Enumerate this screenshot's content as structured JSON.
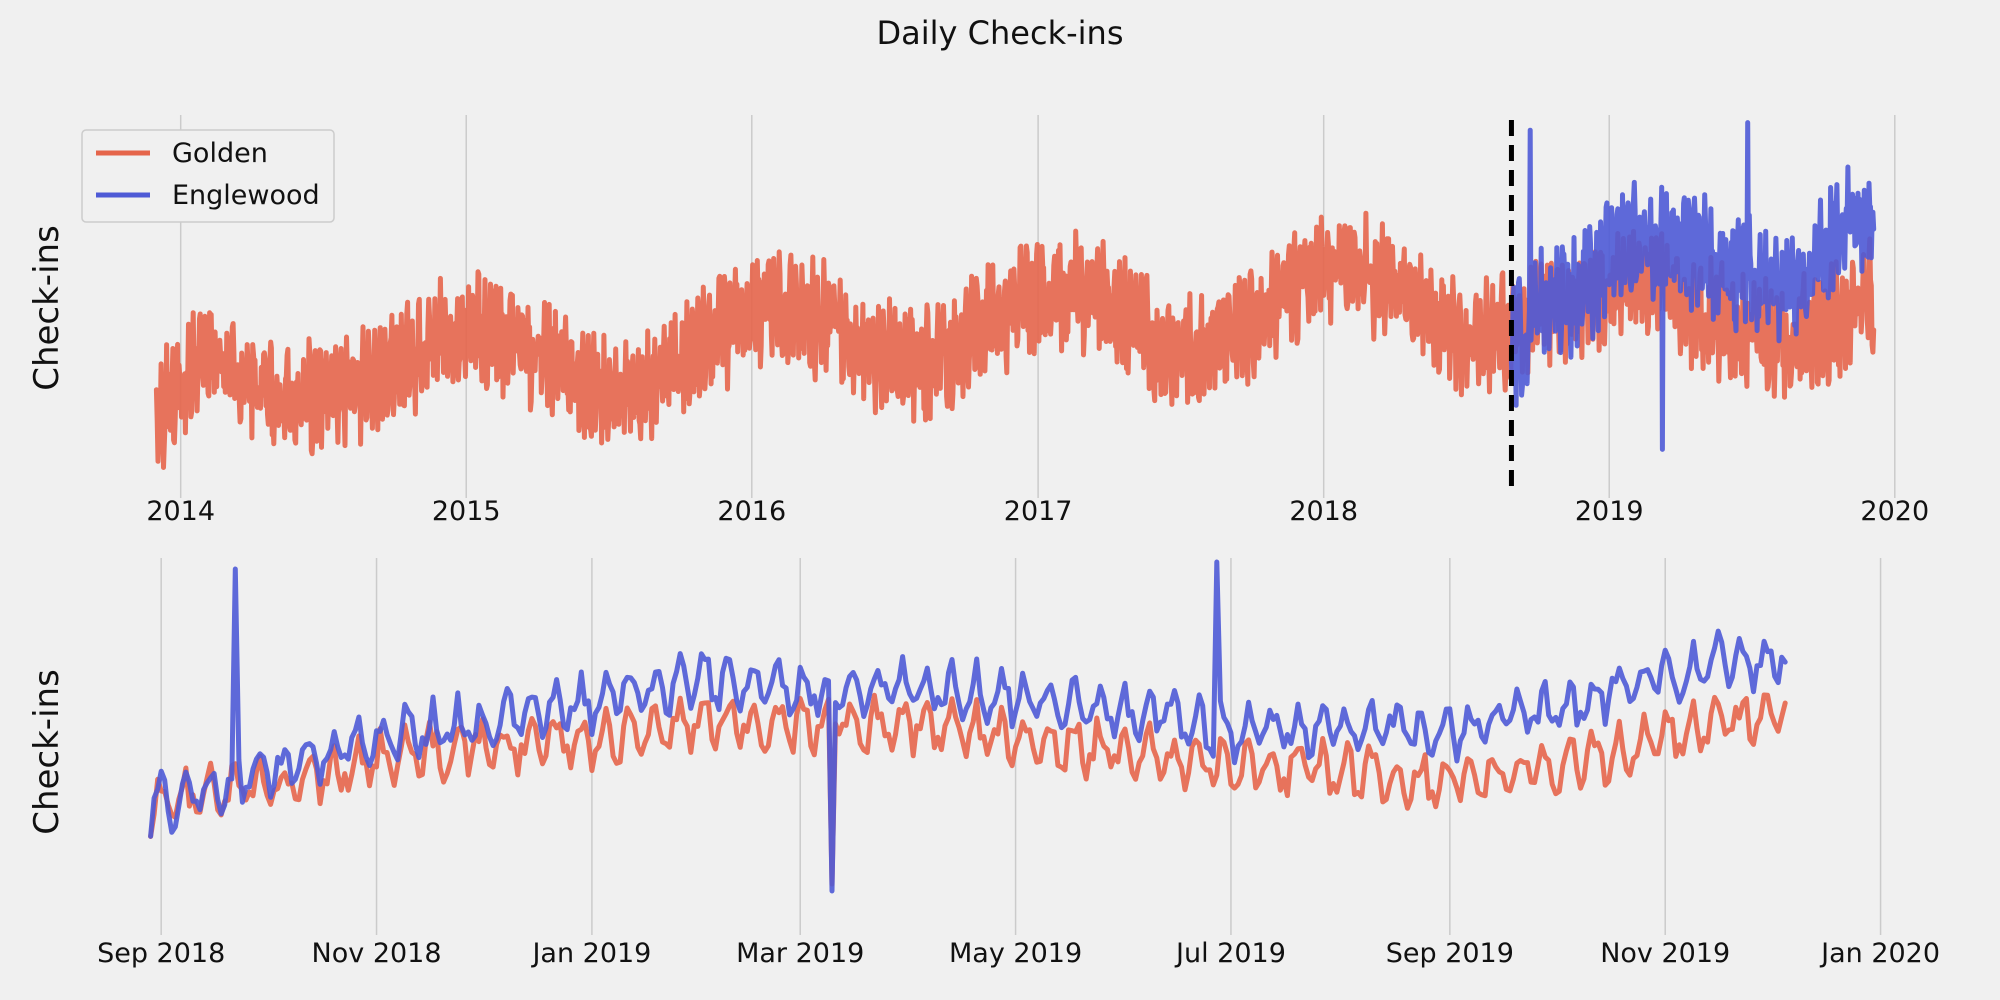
{
  "figure": {
    "title": "Daily Check-ins"
  },
  "colors": {
    "background": "#f0f0f0",
    "grid": "#cbcbcb",
    "golden": "#e5654b",
    "englewood": "#4e5ad6",
    "marker": "#000000"
  },
  "chart_data": [
    {
      "type": "line",
      "panel": "overview",
      "ylabel": "Check-ins",
      "x_tick_labels": [
        "2014",
        "2015",
        "2016",
        "2017",
        "2018",
        "2019",
        "2020"
      ],
      "xlim": [
        "2013-11-10",
        "2020-02-15"
      ],
      "ylim": [
        0,
        100
      ],
      "grid": "vertical",
      "legend": {
        "placement": "upper-left",
        "entries": [
          "Golden",
          "Englewood"
        ]
      },
      "marker_line": {
        "date": "2018-08-29",
        "style": "dashed"
      },
      "series": [
        {
          "name": "Golden",
          "color": "#e5654b",
          "start": "2013-12-01",
          "end": "2019-12-05",
          "points": [
            [
              "2013-12-01",
              22
            ],
            [
              "2014-02-01",
              36
            ],
            [
              "2014-04-01",
              30
            ],
            [
              "2014-06-01",
              24
            ],
            [
              "2014-08-01",
              27
            ],
            [
              "2014-10-01",
              35
            ],
            [
              "2014-12-01",
              42
            ],
            [
              "2015-02-01",
              44
            ],
            [
              "2015-04-01",
              38
            ],
            [
              "2015-06-01",
              28
            ],
            [
              "2015-08-01",
              26
            ],
            [
              "2015-10-01",
              34
            ],
            [
              "2015-12-01",
              44
            ],
            [
              "2016-02-01",
              50
            ],
            [
              "2016-04-01",
              46
            ],
            [
              "2016-06-01",
              36
            ],
            [
              "2016-08-01",
              34
            ],
            [
              "2016-10-01",
              40
            ],
            [
              "2016-12-01",
              50
            ],
            [
              "2017-02-01",
              54
            ],
            [
              "2017-04-01",
              50
            ],
            [
              "2017-06-01",
              40
            ],
            [
              "2017-08-01",
              38
            ],
            [
              "2017-10-01",
              46
            ],
            [
              "2017-12-01",
              56
            ],
            [
              "2018-02-01",
              60
            ],
            [
              "2018-04-01",
              56
            ],
            [
              "2018-06-01",
              44
            ],
            [
              "2018-08-01",
              42
            ],
            [
              "2018-10-01",
              48
            ],
            [
              "2018-12-01",
              50
            ],
            [
              "2019-02-01",
              58
            ],
            [
              "2019-04-01",
              52
            ],
            [
              "2019-06-01",
              44
            ],
            [
              "2019-08-01",
              40
            ],
            [
              "2019-10-01",
              44
            ],
            [
              "2019-12-05",
              52
            ]
          ]
        },
        {
          "name": "Englewood",
          "color": "#4e5ad6",
          "start": "2018-08-29",
          "end": "2019-12-05",
          "points": [
            [
              "2018-08-29",
              38
            ],
            [
              "2018-10-01",
              48
            ],
            [
              "2018-12-01",
              55
            ],
            [
              "2019-01-01",
              64
            ],
            [
              "2019-02-01",
              68
            ],
            [
              "2019-03-01",
              64
            ],
            [
              "2019-04-01",
              66
            ],
            [
              "2019-05-01",
              64
            ],
            [
              "2019-06-01",
              58
            ],
            [
              "2019-07-01",
              58
            ],
            [
              "2019-08-01",
              54
            ],
            [
              "2019-09-01",
              56
            ],
            [
              "2019-10-01",
              64
            ],
            [
              "2019-11-01",
              70
            ],
            [
              "2019-12-05",
              72
            ]
          ],
          "spikes": [
            [
              "2018-09-22",
              96
            ],
            [
              "2019-03-10",
              12
            ],
            [
              "2019-06-27",
              98
            ]
          ]
        }
      ]
    },
    {
      "type": "line",
      "panel": "zoom",
      "ylabel": "Check-ins",
      "x_tick_labels": [
        "Sep 2018",
        "Nov 2018",
        "Jan 2019",
        "Mar 2019",
        "May 2019",
        "Jul 2019",
        "Sep 2019",
        "Nov 2019",
        "Jan 2020"
      ],
      "xlim": [
        "2018-08-26",
        "2020-01-15"
      ],
      "ylim": [
        0,
        100
      ],
      "grid": "vertical",
      "series": [
        {
          "name": "Golden",
          "color": "#e5654b",
          "start": "2018-08-29",
          "end": "2019-12-05",
          "points": [
            [
              "2018-08-29",
              28
            ],
            [
              "2018-10-01",
              34
            ],
            [
              "2018-11-01",
              42
            ],
            [
              "2018-12-01",
              46
            ],
            [
              "2019-01-01",
              48
            ],
            [
              "2019-02-01",
              52
            ],
            [
              "2019-03-01",
              52
            ],
            [
              "2019-04-01",
              52
            ],
            [
              "2019-05-01",
              48
            ],
            [
              "2019-06-01",
              44
            ],
            [
              "2019-07-01",
              40
            ],
            [
              "2019-08-01",
              38
            ],
            [
              "2019-09-01",
              36
            ],
            [
              "2019-10-01",
              40
            ],
            [
              "2019-11-01",
              48
            ],
            [
              "2019-12-05",
              56
            ]
          ],
          "spikes": [
            [
              "2019-03-10",
              6
            ]
          ]
        },
        {
          "name": "Englewood",
          "color": "#4e5ad6",
          "start": "2018-08-29",
          "end": "2019-12-05",
          "points": [
            [
              "2018-08-29",
              28
            ],
            [
              "2018-10-01",
              38
            ],
            [
              "2018-11-01",
              48
            ],
            [
              "2018-12-01",
              52
            ],
            [
              "2019-01-01",
              58
            ],
            [
              "2019-02-01",
              64
            ],
            [
              "2019-03-01",
              62
            ],
            [
              "2019-04-01",
              62
            ],
            [
              "2019-05-01",
              60
            ],
            [
              "2019-06-01",
              56
            ],
            [
              "2019-07-01",
              50
            ],
            [
              "2019-08-01",
              50
            ],
            [
              "2019-09-01",
              50
            ],
            [
              "2019-10-01",
              56
            ],
            [
              "2019-11-01",
              66
            ],
            [
              "2019-12-05",
              72
            ]
          ],
          "spikes": [
            [
              "2018-09-22",
              96
            ],
            [
              "2019-03-10",
              4
            ],
            [
              "2019-06-27",
              98
            ]
          ]
        }
      ]
    }
  ]
}
